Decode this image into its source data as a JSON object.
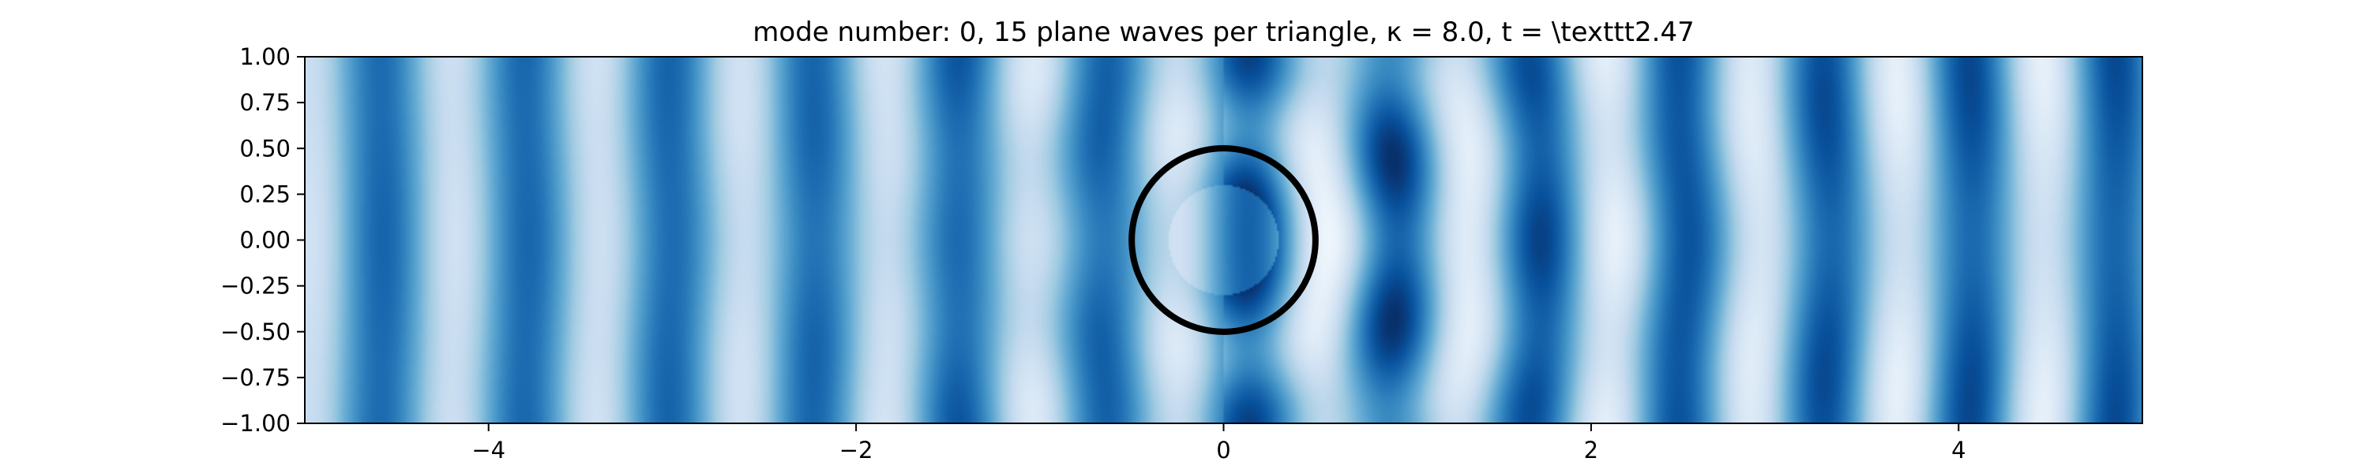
{
  "chart_data": {
    "type": "heatmap",
    "title": "mode number: 0, 15 plane waves per triangle, κ = 8.0, t =  \\texttt2.47",
    "xlabel": "",
    "ylabel": "",
    "xlim": [
      -5,
      5
    ],
    "ylim": [
      -1,
      1
    ],
    "xticks": [
      -4,
      -2,
      0,
      2,
      4
    ],
    "xtick_labels": [
      "−4",
      "−2",
      "0",
      "2",
      "4"
    ],
    "yticks": [
      1.0,
      0.75,
      0.5,
      0.25,
      0.0,
      -0.25,
      -0.5,
      -0.75,
      -1.0
    ],
    "ytick_labels": [
      "1.00",
      "0.75",
      "0.50",
      "0.25",
      "0.00",
      "−0.25",
      "−0.50",
      "−0.75",
      "−1.00"
    ],
    "colormap": "Blues",
    "grid": false,
    "field": {
      "kappa": 8.0,
      "mode_number": 0,
      "plane_waves_per_triangle": 15,
      "t": 2.47
    },
    "scatterer": {
      "shape": "circle",
      "center": [
        0,
        0
      ],
      "radius": 0.5,
      "color": "#000000"
    },
    "colors": {
      "colormap_light": "#f7fbff",
      "colormap_dark": "#08306b",
      "axes": "#000000"
    }
  }
}
